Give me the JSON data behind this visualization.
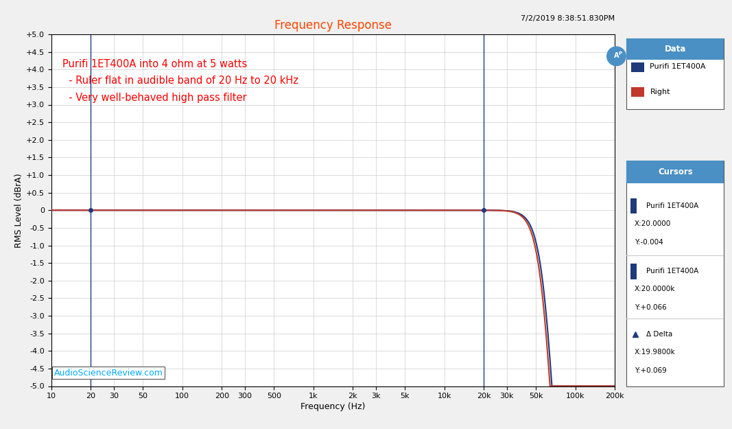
{
  "title": "Frequency Response",
  "title_color": "#FF4500",
  "xlabel": "Frequency (Hz)",
  "ylabel": "RMS Level (dBrA)",
  "xlim_log": [
    10,
    200000
  ],
  "ylim": [
    -5.0,
    5.0
  ],
  "yticks": [
    -5.0,
    -4.5,
    -4.0,
    -3.5,
    -3.0,
    -2.5,
    -2.0,
    -1.5,
    -1.0,
    -0.5,
    0.0,
    0.5,
    1.0,
    1.5,
    2.0,
    2.5,
    3.0,
    3.5,
    4.0,
    4.5,
    5.0
  ],
  "ytick_labels": [
    "-5.0",
    "-4.5",
    "-4.0",
    "-3.5",
    "-3.0",
    "-2.5",
    "-2.0",
    "-1.5",
    "-1.0",
    "-0.5",
    "0",
    "+0.5",
    "+1.0",
    "+1.5",
    "+2.0",
    "+2.5",
    "+3.0",
    "+3.5",
    "+4.0",
    "+4.5",
    "+5.0"
  ],
  "xtick_positions": [
    10,
    20,
    30,
    50,
    100,
    200,
    300,
    500,
    1000,
    2000,
    3000,
    5000,
    10000,
    20000,
    30000,
    50000,
    100000,
    200000
  ],
  "xtick_labels": [
    "10",
    "20",
    "30",
    "50",
    "100",
    "200",
    "300",
    "500",
    "1k",
    "2k",
    "3k",
    "5k",
    "10k",
    "20k",
    "30k",
    "50k",
    "100k",
    "200k"
  ],
  "line1_color": "#1F3A7A",
  "line2_color": "#C0392B",
  "plot_bg_color": "#FFFFFF",
  "grid_color": "#CCCCCC",
  "annotation_text": "Purifi 1ET400A into 4 ohm at 5 watts\n  - Ruler flat in audible band of 20 Hz to 20 kHz\n  - Very well-behaved high pass filter",
  "annotation_color": "#FF0000",
  "timestamp": "7/2/2019 8:38:51.830PM",
  "watermark": "AudioScienceReview.com",
  "cursor_line1_x": 20,
  "cursor_line2_x": 20000,
  "legend_title": "Data",
  "legend_title_bg": "#4A90C4",
  "legend_entries": [
    "Purifi 1ET400A",
    "Right"
  ],
  "legend_colors": [
    "#1F3A7A",
    "#C0392B"
  ],
  "cursors_title": "Cursors",
  "cursors_title_bg": "#4A90C4",
  "cursor1_label": "Purifi 1ET400A",
  "cursor1_x": "X:20.0000",
  "cursor1_y": "Y:-0.004",
  "cursor2_label": "Purifi 1ET400A",
  "cursor2_x": "X:20.0000k",
  "cursor2_y": "Y:+0.066",
  "cursor3_label": "Δ Delta",
  "cursor3_x": "X:19.9800k",
  "cursor3_y": "Y:+0.069",
  "ap_logo_color": "#4A90C4",
  "outer_bg": "#F0F0F0",
  "rolloff_fc_blue": 60000,
  "rolloff_fc_red": 58000
}
